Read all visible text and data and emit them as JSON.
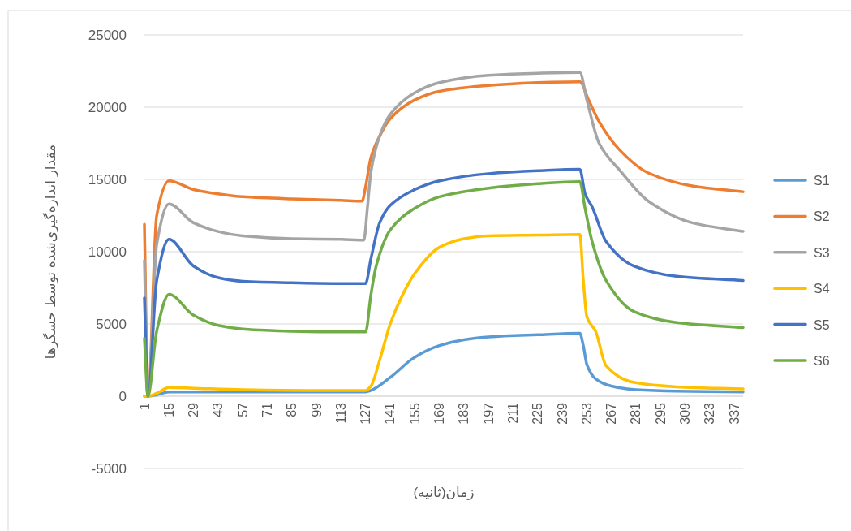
{
  "chart_data": {
    "type": "line",
    "xlabel": "زمان(ثانیه)",
    "ylabel": "مقدار اندازه‌گیری‌شده توسط حسگرها",
    "xlim": [
      1,
      342
    ],
    "xticks": [
      1,
      15,
      29,
      43,
      57,
      71,
      85,
      99,
      113,
      127,
      141,
      155,
      169,
      183,
      197,
      211,
      225,
      239,
      253,
      267,
      281,
      295,
      309,
      323,
      337
    ],
    "ylim": [
      -5000,
      25000
    ],
    "yticks": [
      -5000,
      0,
      5000,
      10000,
      15000,
      20000,
      25000
    ],
    "grid": "y",
    "legend": "right",
    "marker": "none",
    "line_style": "solid",
    "series": [
      {
        "name": "S1",
        "color": "#5b9bd5",
        "x": [
          1,
          3,
          8,
          15,
          29,
          57,
          99,
          127,
          130,
          141,
          155,
          169,
          183,
          197,
          225,
          249,
          251,
          253,
          258,
          267,
          281,
          304,
          342
        ],
        "values": [
          0,
          0,
          100,
          300,
          300,
          300,
          300,
          300,
          400,
          1300,
          2700,
          3500,
          3900,
          4100,
          4250,
          4350,
          3500,
          2200,
          1200,
          700,
          450,
          350,
          300
        ]
      },
      {
        "name": "S2",
        "color": "#ed7d31",
        "x": [
          1,
          3,
          8,
          15,
          29,
          43,
          57,
          85,
          113,
          125,
          127,
          130,
          135,
          141,
          155,
          169,
          197,
          225,
          249,
          254,
          260,
          272,
          288,
          313,
          342
        ],
        "values": [
          11900,
          0,
          12500,
          14900,
          14300,
          14000,
          13800,
          13650,
          13550,
          13500,
          14500,
          16500,
          18000,
          19200,
          20500,
          21100,
          21500,
          21700,
          21750,
          20500,
          19000,
          17000,
          15450,
          14550,
          14150
        ]
      },
      {
        "name": "S3",
        "color": "#a5a5a5",
        "x": [
          1,
          3,
          8,
          15,
          29,
          43,
          57,
          85,
          113,
          126,
          128,
          130,
          135,
          141,
          155,
          169,
          197,
          225,
          249,
          253,
          260,
          272,
          288,
          313,
          342
        ],
        "values": [
          9400,
          0,
          10500,
          13300,
          12000,
          11400,
          11100,
          10900,
          10850,
          10800,
          13000,
          15500,
          18000,
          19500,
          21000,
          21700,
          22200,
          22350,
          22400,
          20500,
          17500,
          15600,
          13500,
          12000,
          11400
        ]
      },
      {
        "name": "S4",
        "color": "#ffc000",
        "x": [
          1,
          3,
          8,
          15,
          29,
          57,
          99,
          127,
          130,
          135,
          141,
          148,
          155,
          169,
          183,
          197,
          225,
          249,
          251,
          253,
          258,
          264,
          280,
          304,
          342
        ],
        "values": [
          0,
          0,
          200,
          600,
          550,
          450,
          400,
          400,
          700,
          2500,
          5000,
          7000,
          8500,
          10300,
          10900,
          11100,
          11150,
          11200,
          8000,
          5500,
          4500,
          2100,
          950,
          650,
          500
        ]
      },
      {
        "name": "S5",
        "color": "#4472c4",
        "x": [
          1,
          3,
          8,
          15,
          29,
          43,
          57,
          85,
          113,
          127,
          130,
          135,
          141,
          155,
          169,
          197,
          225,
          249,
          252,
          256,
          264,
          280,
          304,
          342
        ],
        "values": [
          6800,
          0,
          8000,
          10850,
          9000,
          8200,
          7950,
          7850,
          7800,
          7800,
          9500,
          12000,
          13200,
          14300,
          14900,
          15400,
          15600,
          15700,
          14000,
          13100,
          10700,
          9000,
          8300,
          8000
        ]
      },
      {
        "name": "S6",
        "color": "#70ad47",
        "x": [
          1,
          3,
          8,
          15,
          29,
          43,
          57,
          85,
          113,
          127,
          130,
          133,
          141,
          155,
          169,
          197,
          225,
          249,
          252,
          256,
          264,
          280,
          304,
          342
        ],
        "values": [
          4000,
          0,
          4500,
          7050,
          5600,
          4900,
          4650,
          4500,
          4450,
          4450,
          7000,
          9000,
          11500,
          13000,
          13800,
          14400,
          14700,
          14850,
          13000,
          10700,
          8000,
          5850,
          5100,
          4750
        ]
      }
    ]
  }
}
